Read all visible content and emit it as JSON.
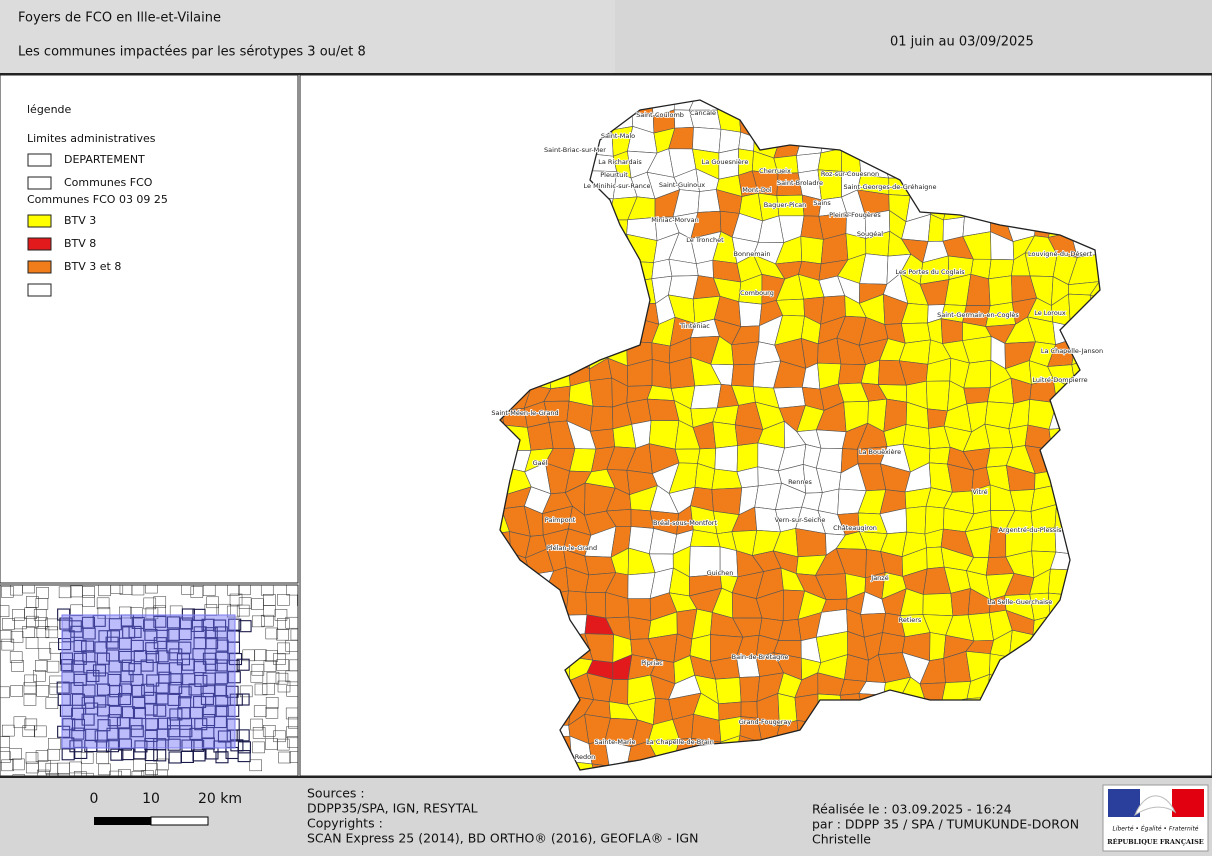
{
  "header": {
    "title": "Foyers de FCO en Ille-et-Vilaine",
    "subtitle": "Les communes impactées par les sérotypes 3 ou/et 8",
    "period": "01 juin au 03/09/2025"
  },
  "legend": {
    "title": "légende",
    "groups": [
      {
        "heading": "Limites administratives",
        "items": [
          {
            "label": "DEPARTEMENT",
            "color": "#ffffff"
          },
          {
            "label": "Communes FCO",
            "color": "#ffffff"
          }
        ]
      },
      {
        "heading": "Communes FCO 03 09 25",
        "items": [
          {
            "label": "BTV 3",
            "color": "#ffff00"
          },
          {
            "label": "BTV 8",
            "color": "#e31a1c"
          },
          {
            "label": "BTV 3 et 8",
            "color": "#f07d1a"
          },
          {
            "color": "#ffffff"
          }
        ]
      }
    ]
  },
  "map": {
    "communes": [
      "Saint-Coulomb",
      "Cancale",
      "Saint-Malo",
      "Saint-Briac-sur-Mer",
      "La Richardais",
      "Pleurtuit",
      "Le Minihic-sur-Rance",
      "Saint-Guinoux",
      "La Gouesnière",
      "Cherrueix",
      "Mont-Dol",
      "Saint-Broladre",
      "Roz-sur-Couesnon",
      "Saint-Georges-de-Gréhaigne",
      "Miniac-Morvan",
      "Baguer-Pican",
      "Sains",
      "Pleine-Fougères",
      "Le Tronchet",
      "Bonnemain",
      "Sougéal",
      "Combourg",
      "Louvigné-du-Désert",
      "Les Portes du Coglais",
      "Saint-Germain-en-Coglès",
      "Le Loroux",
      "La Chapelle-Janson",
      "Luitré-Dompierre",
      "Tinténiac",
      "Saint-Méen-le-Grand",
      "Gaël",
      "Paimpont",
      "Plélan-le-Grand",
      "Bréal-sous-Montfort",
      "Rennes",
      "Vern-sur-Seiche",
      "Châteaugiron",
      "La Bouëxière",
      "Vitré",
      "Argentré-du-Plessis",
      "Janzé",
      "Guichen",
      "Retiers",
      "La Selle-Guerchaise",
      "Bain-de-Bretagne",
      "Pipriac",
      "Grand-Fougeray",
      "Sainte-Marie",
      "La Chapelle-de-Brain",
      "Redon"
    ]
  },
  "scale_bar": {
    "labels": [
      "0",
      "10",
      "20 km"
    ]
  },
  "footer": {
    "sources": [
      "Sources :",
      "DDPP35/SPA, IGN, RESYTAL",
      "Copyrights :",
      "SCAN Express 25 (2014), BD ORTHO® (2016), GEOFLA® - IGN"
    ],
    "credits": [
      "Réalisée le : 03.09.2025 - 16:24",
      "par : DDPP 35 / SPA / TUMUKUNDE-DORON",
      "Christelle"
    ],
    "logo": {
      "motto": "Liberté • Égalité • Fraternité",
      "name": "RÉPUBLIQUE FRANÇAISE"
    }
  }
}
